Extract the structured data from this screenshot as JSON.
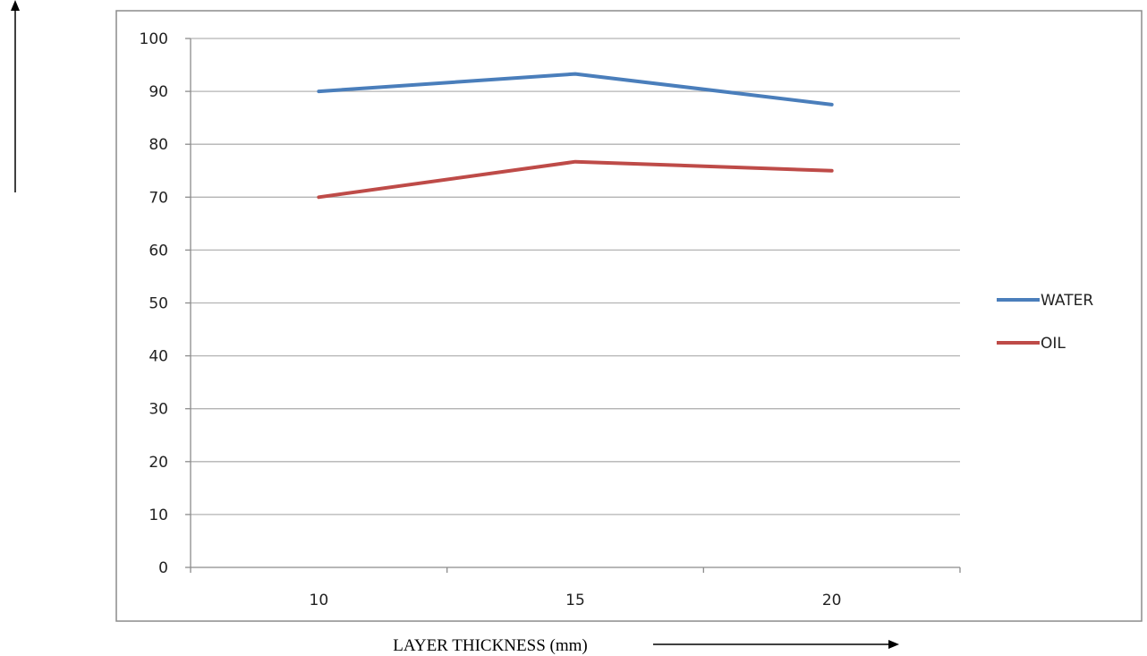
{
  "chart_data": {
    "type": "line",
    "title": "",
    "xlabel": "LAYER THICKNESS (mm)",
    "ylabel": "",
    "categories": [
      "10",
      "15",
      "20"
    ],
    "ylim": [
      0,
      100
    ],
    "yticks": [
      0,
      10,
      20,
      30,
      40,
      50,
      60,
      70,
      80,
      90,
      100
    ],
    "grid": true,
    "legend_position": "right",
    "series": [
      {
        "name": "WATER",
        "values": [
          90,
          93.3,
          87.5
        ],
        "color": "#4a7ebb"
      },
      {
        "name": "OIL",
        "values": [
          70,
          76.7,
          75
        ],
        "color": "#be4b48"
      }
    ]
  }
}
